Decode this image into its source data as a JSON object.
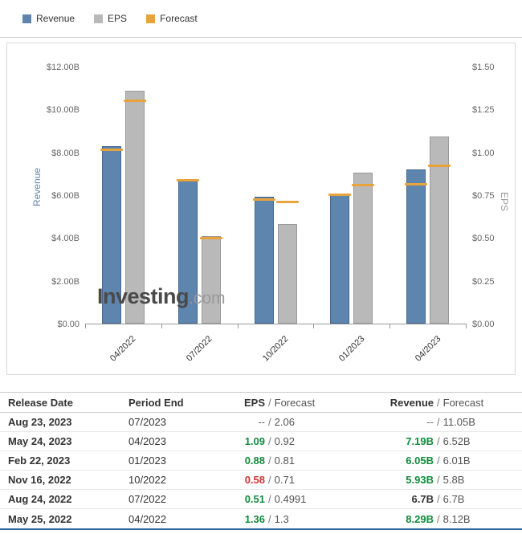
{
  "legend": [
    {
      "label": "Revenue",
      "color": "#5d85ad"
    },
    {
      "label": "EPS",
      "color": "#b9b9b9"
    },
    {
      "label": "Forecast",
      "color": "#e8a33b"
    }
  ],
  "watermark": {
    "main": "Investing",
    "suffix": ".com"
  },
  "chart_data": {
    "type": "bar",
    "categories": [
      "04/2022",
      "07/2022",
      "10/2022",
      "01/2023",
      "04/2023"
    ],
    "series": [
      {
        "name": "Revenue",
        "axis": "left",
        "color": "#5d85ad",
        "values": [
          8.29,
          6.7,
          5.93,
          6.05,
          7.19
        ],
        "forecast": [
          8.12,
          6.7,
          5.8,
          6.01,
          6.52
        ]
      },
      {
        "name": "EPS",
        "axis": "right",
        "color": "#b9b9b9",
        "values": [
          1.36,
          0.51,
          0.58,
          0.88,
          1.09
        ],
        "forecast": [
          1.3,
          0.4991,
          0.71,
          0.81,
          0.92
        ]
      }
    ],
    "forecast_color": "#e8a33b",
    "left_axis": {
      "title": "Revenue",
      "min": 0,
      "max": 12,
      "ticks": [
        "$12.00B",
        "$10.00B",
        "$8.00B",
        "$6.00B",
        "$4.00B",
        "$2.00B",
        "$0.00"
      ]
    },
    "right_axis": {
      "title": "EPS",
      "min": 0,
      "max": 1.5,
      "ticks": [
        "$1.50",
        "$1.25",
        "$1.00",
        "$0.75",
        "$0.50",
        "$0.25",
        "$0.00"
      ]
    },
    "grid": false,
    "legend_position": "top-left"
  },
  "table": {
    "headers": {
      "release_date": "Release Date",
      "period_end": "Period End",
      "eps": "EPS",
      "eps_sep": "/",
      "eps_forecast": "Forecast",
      "revenue": "Revenue",
      "rev_sep": "/",
      "rev_forecast": "Forecast"
    },
    "rows": [
      {
        "release_date": "Aug 23, 2023",
        "period_end": "07/2023",
        "eps": "--",
        "eps_color": "muted",
        "eps_forecast": "2.06",
        "revenue": "--",
        "rev_color": "muted",
        "rev_forecast": "11.05B"
      },
      {
        "release_date": "May 24, 2023",
        "period_end": "04/2023",
        "eps": "1.09",
        "eps_color": "green",
        "eps_forecast": "0.92",
        "revenue": "7.19B",
        "rev_color": "green",
        "rev_forecast": "6.52B"
      },
      {
        "release_date": "Feb 22, 2023",
        "period_end": "01/2023",
        "eps": "0.88",
        "eps_color": "green",
        "eps_forecast": "0.81",
        "revenue": "6.05B",
        "rev_color": "green",
        "rev_forecast": "6.01B"
      },
      {
        "release_date": "Nov 16, 2022",
        "period_end": "10/2022",
        "eps": "0.58",
        "eps_color": "red",
        "eps_forecast": "0.71",
        "revenue": "5.93B",
        "rev_color": "green",
        "rev_forecast": "5.8B"
      },
      {
        "release_date": "Aug 24, 2022",
        "period_end": "07/2022",
        "eps": "0.51",
        "eps_color": "green",
        "eps_forecast": "0.4991",
        "revenue": "6.7B",
        "rev_color": "dark",
        "rev_forecast": "6.7B"
      },
      {
        "release_date": "May 25, 2022",
        "period_end": "04/2022",
        "eps": "1.36",
        "eps_color": "green",
        "eps_forecast": "1.3",
        "revenue": "8.29B",
        "rev_color": "green",
        "rev_forecast": "8.12B"
      }
    ]
  }
}
